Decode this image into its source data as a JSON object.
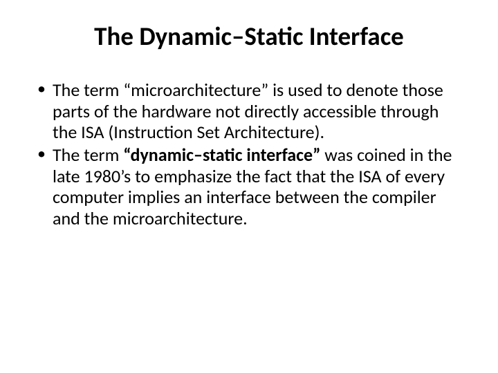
{
  "slide": {
    "title": "The Dynamic–Static Interface",
    "bullets": [
      {
        "pre": "The term “microarchitecture” is used to denote those parts of the hardware not directly accessible through the ISA (Instruction Set Architecture).",
        "bold": "",
        "post": ""
      },
      {
        "pre": "The term ",
        "bold": "“dynamic–static interface”",
        "post": " was coined in the late 1980’s to emphasize the fact that the ISA of every computer implies an interface between the compiler and the microarchitecture."
      }
    ]
  },
  "style": {
    "background_color": "#ffffff",
    "text_color": "#000000",
    "title_fontsize": 37,
    "title_fontweight": 700,
    "body_fontsize": 26,
    "body_lineheight": 1.18,
    "font_family": "Calibri"
  }
}
